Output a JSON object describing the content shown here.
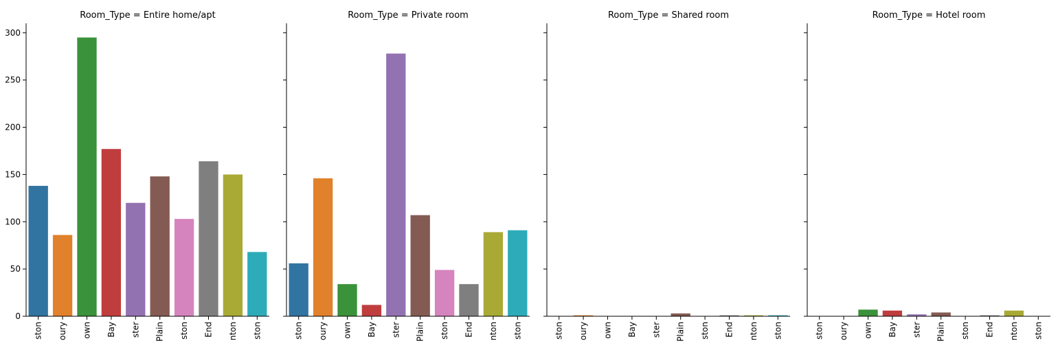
{
  "chart_data": {
    "type": "bar",
    "facet_variable": "Room_Type",
    "categories": [
      "ston",
      "oury",
      "own",
      "Bay",
      "ster",
      "Plain",
      "ston",
      "End",
      "nton",
      "ston"
    ],
    "ylim": [
      0,
      310
    ],
    "yticks": [
      0,
      50,
      100,
      150,
      200,
      250,
      300
    ],
    "grid": false,
    "sharey": true,
    "colors": [
      "#3274a1",
      "#e1812c",
      "#3a923a",
      "#c03d3e",
      "#9372b2",
      "#845b53",
      "#d684bd",
      "#7f7f7f",
      "#a9aa35",
      "#2eabb8"
    ],
    "panels": [
      {
        "title": "Room_Type = Entire home/apt",
        "values": [
          138,
          86,
          295,
          177,
          120,
          148,
          103,
          164,
          150,
          68
        ]
      },
      {
        "title": "Room_Type = Private room",
        "values": [
          56,
          146,
          34,
          12,
          278,
          107,
          49,
          34,
          89,
          91
        ]
      },
      {
        "title": "Room_Type = Shared room",
        "values": [
          0,
          1,
          0,
          0,
          0,
          3,
          0,
          1,
          1,
          1
        ]
      },
      {
        "title": "Room_Type = Hotel room",
        "values": [
          0,
          0,
          7,
          6,
          2,
          4,
          0,
          1,
          6,
          0
        ]
      }
    ]
  }
}
